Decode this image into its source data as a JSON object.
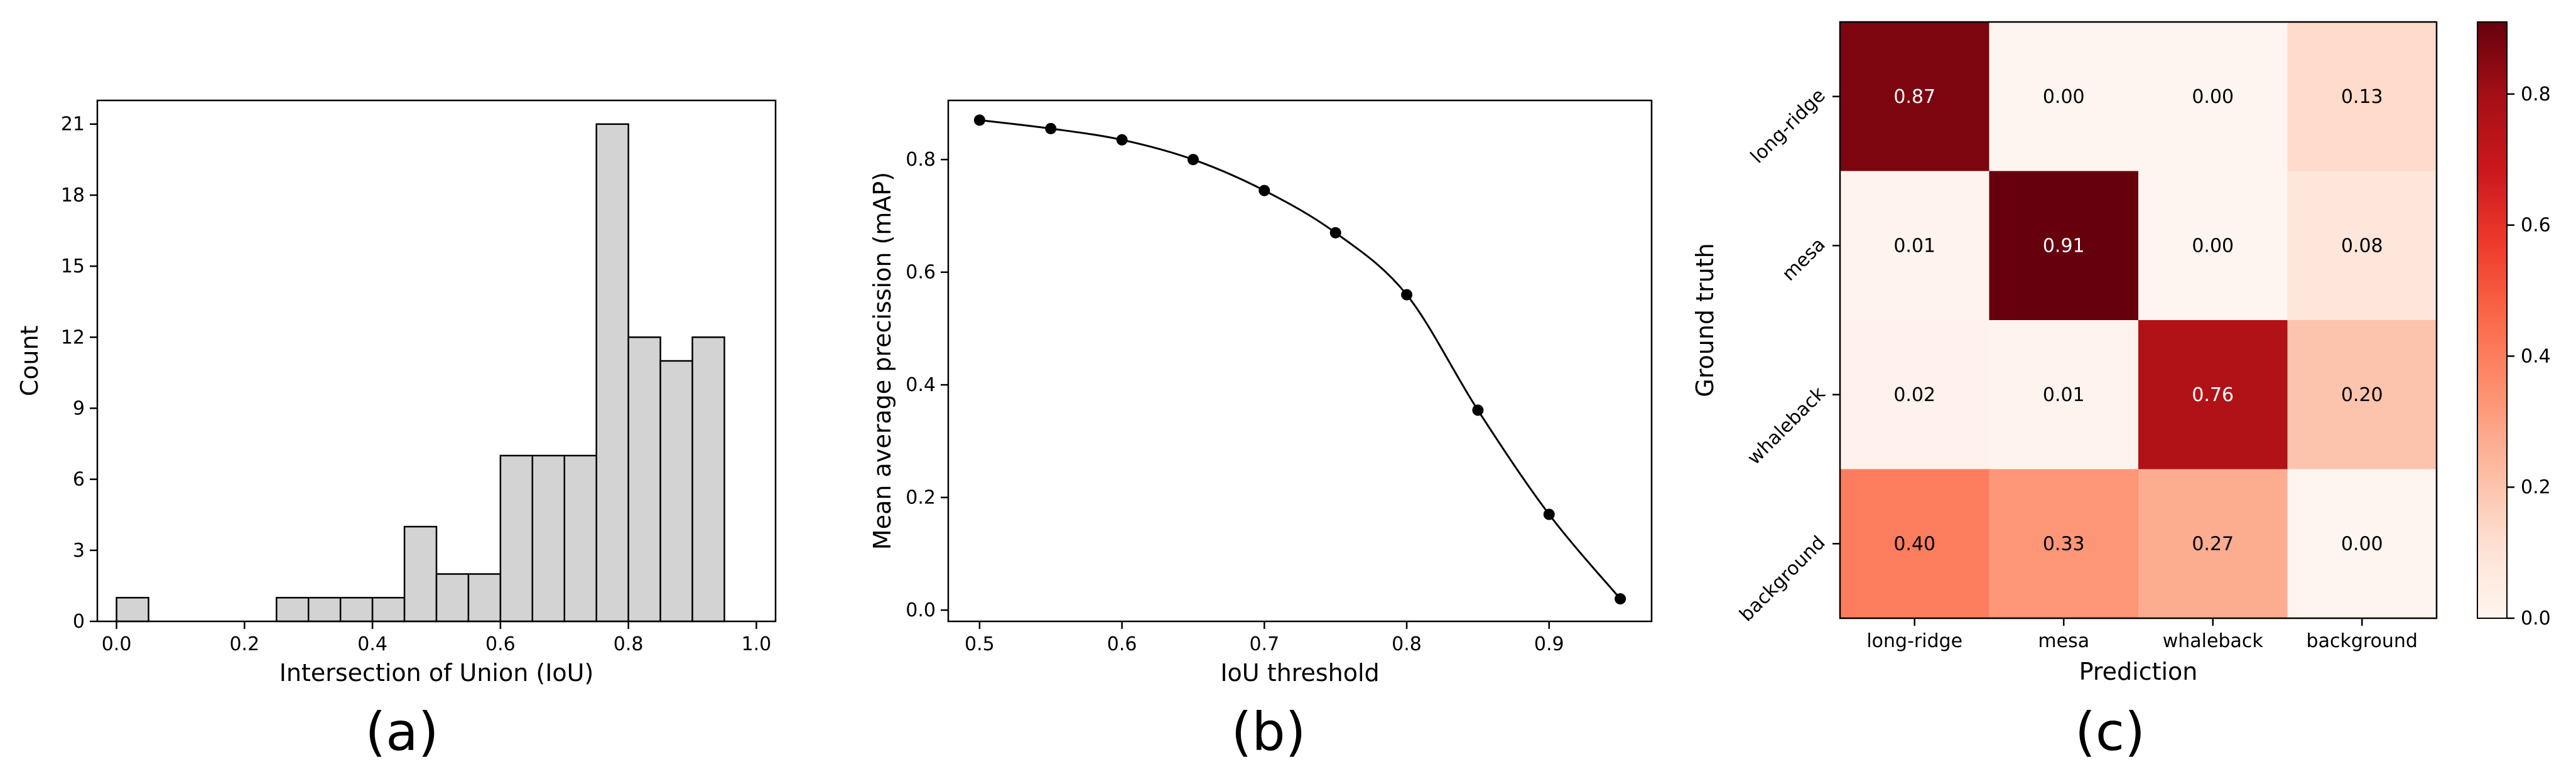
{
  "chart_data": [
    {
      "type": "bar",
      "panel_label": "(a)",
      "xlabel": "Intersection of Union (IoU)",
      "ylabel": "Count",
      "xlim": [
        -0.03,
        1.03
      ],
      "ylim": [
        0,
        22
      ],
      "xticks": [
        "0.0",
        "0.2",
        "0.4",
        "0.6",
        "0.8",
        "1.0"
      ],
      "xtick_values": [
        0.0,
        0.2,
        0.4,
        0.6,
        0.8,
        1.0
      ],
      "yticks": [
        "0",
        "3",
        "6",
        "9",
        "12",
        "15",
        "18",
        "21"
      ],
      "ytick_values": [
        0,
        3,
        6,
        9,
        12,
        15,
        18,
        21
      ],
      "bin_width": 0.05,
      "bin_starts": [
        0.0,
        0.05,
        0.1,
        0.15,
        0.2,
        0.25,
        0.3,
        0.35,
        0.4,
        0.45,
        0.5,
        0.55,
        0.6,
        0.65,
        0.7,
        0.75,
        0.8,
        0.85,
        0.9
      ],
      "values": [
        1,
        0,
        0,
        0,
        0,
        1,
        1,
        1,
        1,
        4,
        2,
        2,
        7,
        7,
        7,
        21,
        12,
        11,
        12
      ],
      "bar_color": "#d3d3d3",
      "grid": false
    },
    {
      "type": "line",
      "panel_label": "(b)",
      "xlabel": "IoU threshold",
      "ylabel": "Mean average precission (mAP)",
      "xlim": [
        0.478,
        0.972
      ],
      "ylim": [
        -0.02,
        0.905
      ],
      "xticks": [
        "0.5",
        "0.6",
        "0.7",
        "0.8",
        "0.9"
      ],
      "xtick_values": [
        0.5,
        0.6,
        0.7,
        0.8,
        0.9
      ],
      "yticks": [
        "0.0",
        "0.2",
        "0.4",
        "0.6",
        "0.8"
      ],
      "ytick_values": [
        0.0,
        0.2,
        0.4,
        0.6,
        0.8
      ],
      "x": [
        0.5,
        0.55,
        0.6,
        0.65,
        0.7,
        0.75,
        0.8,
        0.85,
        0.9,
        0.95
      ],
      "y": [
        0.87,
        0.855,
        0.835,
        0.8,
        0.745,
        0.67,
        0.56,
        0.355,
        0.17,
        0.02
      ],
      "line_color": "#000000",
      "grid": false
    },
    {
      "type": "heatmap",
      "panel_label": "(c)",
      "xlabel": "Prediction",
      "ylabel": "Ground truth",
      "x_categories": [
        "long-ridge",
        "mesa",
        "whaleback",
        "background"
      ],
      "y_categories": [
        "long-ridge",
        "mesa",
        "whaleback",
        "background"
      ],
      "values": [
        [
          0.87,
          0.0,
          0.0,
          0.13
        ],
        [
          0.01,
          0.91,
          0.0,
          0.08
        ],
        [
          0.02,
          0.01,
          0.76,
          0.2
        ],
        [
          0.4,
          0.33,
          0.27,
          0.0
        ]
      ],
      "colormap": "Reds",
      "colorbar_range": [
        0.0,
        0.91
      ],
      "colorbar_ticks": [
        "0.0",
        "0.2",
        "0.4",
        "0.6",
        "0.8"
      ],
      "colorbar_tick_values": [
        0.0,
        0.2,
        0.4,
        0.6,
        0.8
      ]
    }
  ]
}
